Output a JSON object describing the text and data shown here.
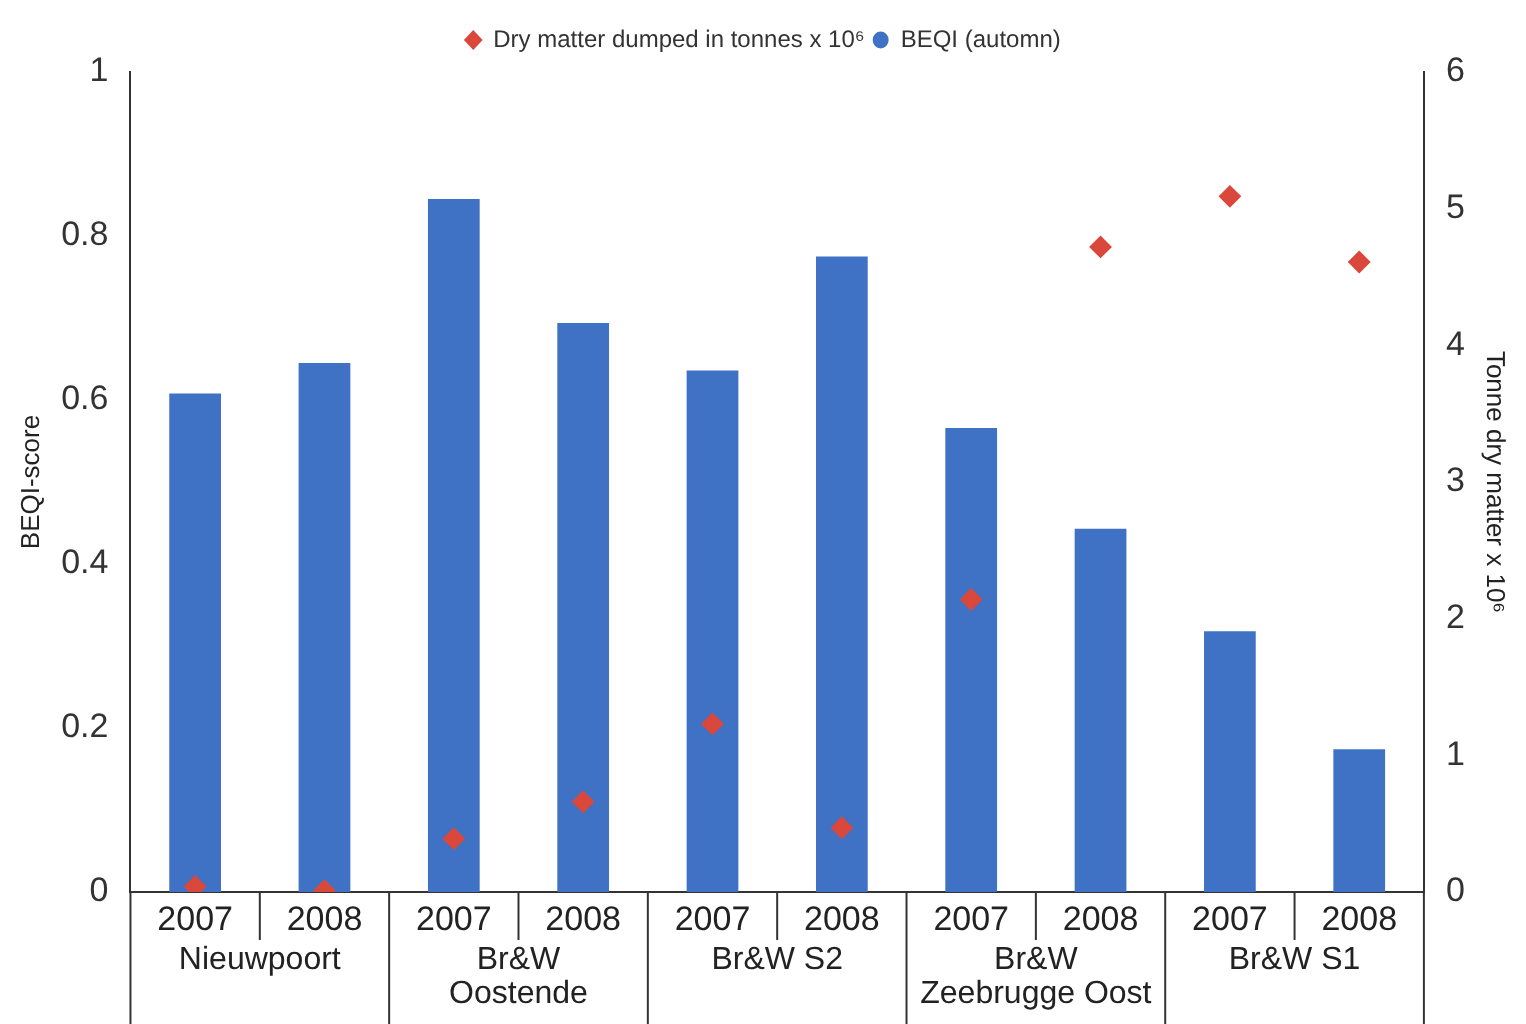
{
  "chart_data": {
    "type": "bar",
    "ylabel": "BEQI-score",
    "y2label": "Tonne dry matter x 10⁶",
    "categories": [
      "2007",
      "2008",
      "2007",
      "2008",
      "2007",
      "2008",
      "2007",
      "2008",
      "2007",
      "2008"
    ],
    "series": [
      {
        "name": "BEQI (automn)",
        "color": "#3f72c4",
        "values": [
          0.608,
          0.645,
          0.845,
          0.694,
          0.636,
          0.775,
          0.566,
          0.443,
          0.318,
          0.174
        ]
      },
      {
        "name": "Dry matter dumped in tonnes x 10⁶",
        "color": "#d9483b",
        "type": "scatter",
        "axis": "y2",
        "marker": "diamond",
        "values": [
          0.04,
          0.01,
          0.39,
          0.66,
          1.23,
          0.47,
          2.14,
          4.72,
          5.09,
          4.61
        ]
      }
    ],
    "annotations": [
      "Nieuwpoort",
      "Br&W\nOostende",
      "Br&W S2",
      "Br&W\nZeebrugge Oost",
      "Br&W S1"
    ],
    "ylim": [
      0,
      1
    ],
    "yticks": [
      0,
      0.2,
      0.4,
      0.6,
      0.8,
      1
    ],
    "y2lim": [
      0,
      6
    ],
    "y2ticks": [
      0,
      1,
      2,
      3,
      4,
      5,
      6
    ],
    "grid": false,
    "legend": "top"
  }
}
